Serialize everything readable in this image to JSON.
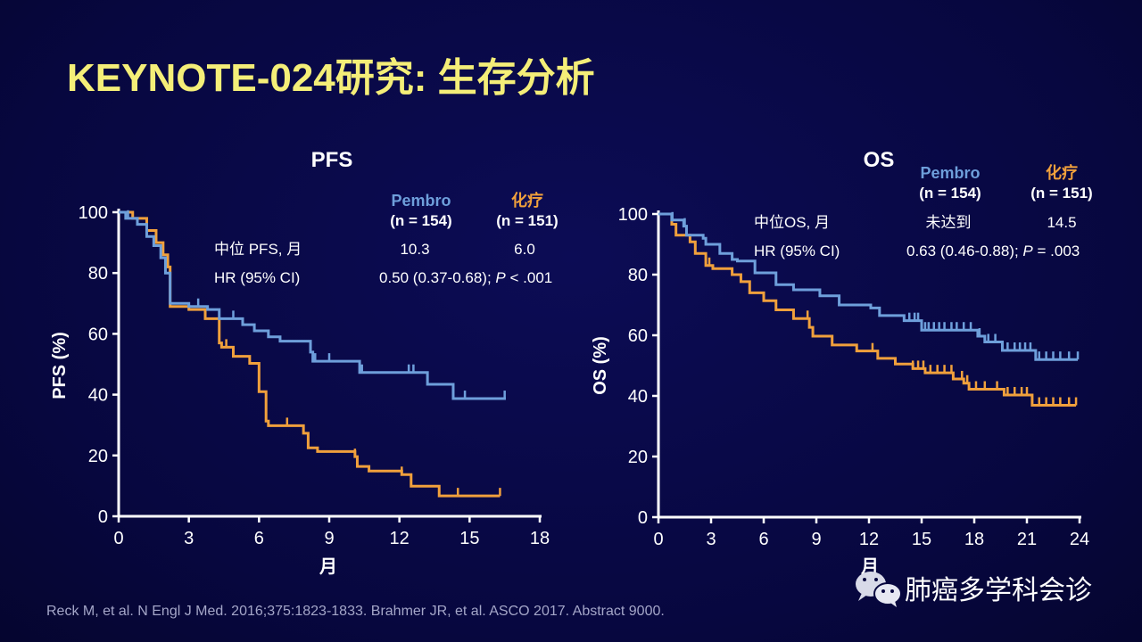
{
  "title": "KEYNOTE-024研究: 生存分析",
  "colors": {
    "pembro": "#6e9fdb",
    "chemo": "#f0a03c",
    "title": "#f4ee78",
    "background": "#07073f"
  },
  "chart_data": [
    {
      "type": "line",
      "subtype": "kaplan-meier",
      "title": "PFS",
      "xlabel": "月",
      "ylabel": "PFS (%)",
      "xlim": [
        0,
        18
      ],
      "ylim": [
        0,
        100
      ],
      "xticks": [
        "0",
        "3",
        "6",
        "9",
        "12",
        "15",
        "18"
      ],
      "yticks": [
        "0",
        "20",
        "40",
        "60",
        "80",
        "100"
      ],
      "legend": [
        {
          "name": "Pembro",
          "n": "(n = 154)"
        },
        {
          "name": "化疗",
          "n": "(n = 151)"
        }
      ],
      "stats": {
        "median_label": "中位 PFS, 月",
        "median_pembro": "10.3",
        "median_chemo": "6.0",
        "hr_label": "HR (95% CI)",
        "hr_value": "0.50 (0.37-0.68); ",
        "p_symbol": "P",
        "p_value": " < .001"
      },
      "series": [
        {
          "name": "Pembro",
          "steps": [
            [
              0,
              100
            ],
            [
              0.3,
              98
            ],
            [
              0.8,
              96
            ],
            [
              1.2,
              92
            ],
            [
              1.5,
              89
            ],
            [
              1.8,
              85
            ],
            [
              2.0,
              80
            ],
            [
              2.2,
              70
            ],
            [
              3.0,
              69
            ],
            [
              3.8,
              68
            ],
            [
              4.3,
              65
            ],
            [
              5.3,
              63
            ],
            [
              5.8,
              61
            ],
            [
              6.4,
              59
            ],
            [
              6.9,
              57.6
            ],
            [
              8.2,
              54
            ],
            [
              8.3,
              51
            ],
            [
              10.3,
              47.3
            ],
            [
              13.2,
              43.4
            ],
            [
              14.3,
              38.7
            ],
            [
              16.55,
              38.7
            ]
          ],
          "censored": [
            0.4,
            3.4,
            4.9,
            8.4,
            9.0,
            10.4,
            12.4,
            12.6,
            14.8,
            16.5
          ]
        },
        {
          "name": "化疗",
          "steps": [
            [
              0,
              100
            ],
            [
              0.6,
              98
            ],
            [
              1.2,
              94
            ],
            [
              1.6,
              90
            ],
            [
              1.9,
              86
            ],
            [
              2.1,
              82
            ],
            [
              2.2,
              69
            ],
            [
              3.0,
              68
            ],
            [
              3.7,
              65
            ],
            [
              4.3,
              57
            ],
            [
              4.4,
              55.6
            ],
            [
              4.9,
              52.6
            ],
            [
              5.6,
              50.3
            ],
            [
              6.0,
              41
            ],
            [
              6.3,
              31.3
            ],
            [
              6.4,
              29.8
            ],
            [
              7.9,
              27.3
            ],
            [
              8.1,
              22.5
            ],
            [
              8.5,
              21.3
            ],
            [
              10.1,
              19.6
            ],
            [
              10.2,
              16.4
            ],
            [
              10.7,
              14.9
            ],
            [
              12.1,
              13.7
            ],
            [
              12.5,
              9.9
            ],
            [
              13.7,
              6.7
            ],
            [
              16.3,
              6.7
            ]
          ],
          "censored": [
            4.6,
            7.2,
            7.9,
            10.1,
            12.1,
            13.7,
            14.5,
            16.3
          ]
        }
      ]
    },
    {
      "type": "line",
      "subtype": "kaplan-meier",
      "title": "OS",
      "xlabel": "月",
      "ylabel": "OS (%)",
      "xlim": [
        0,
        24
      ],
      "ylim": [
        0,
        100
      ],
      "xticks": [
        "0",
        "3",
        "6",
        "9",
        "12",
        "15",
        "18",
        "21",
        "24"
      ],
      "yticks": [
        "0",
        "20",
        "40",
        "60",
        "80",
        "100"
      ],
      "legend": [
        {
          "name": "Pembro",
          "n": "(n = 154)"
        },
        {
          "name": "化疗",
          "n": "(n = 151)"
        }
      ],
      "stats": {
        "median_label": "中位OS, 月",
        "median_pembro": "未达到",
        "median_chemo": "14.5",
        "hr_label": "HR (95% CI)",
        "hr_value": "0.63 (0.46-0.88); ",
        "p_symbol": "P",
        "p_value": " = .003"
      },
      "series": [
        {
          "name": "Pembro",
          "steps": [
            [
              0,
              100
            ],
            [
              0.76,
              98
            ],
            [
              1.44,
              96
            ],
            [
              1.6,
              93
            ],
            [
              2.55,
              92
            ],
            [
              2.7,
              90
            ],
            [
              3.5,
              87
            ],
            [
              4.2,
              85
            ],
            [
              4.5,
              84.5
            ],
            [
              5.5,
              80.6
            ],
            [
              6.7,
              76.7
            ],
            [
              7.7,
              75
            ],
            [
              9.2,
              73
            ],
            [
              10.3,
              70
            ],
            [
              12.1,
              69
            ],
            [
              12.6,
              66.5
            ],
            [
              14.0,
              64.8
            ],
            [
              15.0,
              61.7
            ],
            [
              18.2,
              59.7
            ],
            [
              18.6,
              57.8
            ],
            [
              19.6,
              55
            ],
            [
              21.5,
              52
            ],
            [
              23.9,
              52
            ]
          ],
          "censored": [
            0.8,
            1.5,
            14.3,
            14.6,
            14.8,
            15.2,
            15.4,
            15.7,
            16.0,
            16.3,
            16.7,
            17.0,
            17.4,
            17.8,
            18.3,
            18.8,
            19.2,
            19.9,
            20.3,
            20.6,
            20.9,
            21.2,
            21.7,
            22.1,
            22.5,
            22.9,
            23.4,
            23.9
          ]
        },
        {
          "name": "化疗",
          "steps": [
            [
              0,
              100
            ],
            [
              0.76,
              96.6
            ],
            [
              1.0,
              93
            ],
            [
              1.8,
              90.8
            ],
            [
              2.1,
              87
            ],
            [
              2.7,
              83
            ],
            [
              3.1,
              82
            ],
            [
              4.2,
              80
            ],
            [
              4.7,
              77.7
            ],
            [
              5.2,
              74
            ],
            [
              6.0,
              71.4
            ],
            [
              6.7,
              68.4
            ],
            [
              7.7,
              65.5
            ],
            [
              8.6,
              62.6
            ],
            [
              8.8,
              59.7
            ],
            [
              9.9,
              56.8
            ],
            [
              11.3,
              54.8
            ],
            [
              12.5,
              52.4
            ],
            [
              13.5,
              50.5
            ],
            [
              14.5,
              49
            ],
            [
              15.2,
              47.6
            ],
            [
              16.8,
              45.6
            ],
            [
              17.4,
              44.2
            ],
            [
              17.7,
              42.2
            ],
            [
              19.7,
              40.3
            ],
            [
              21.3,
              36.9
            ],
            [
              23.8,
              36.9
            ]
          ],
          "censored": [
            2.9,
            8.5,
            12.2,
            14.5,
            14.8,
            15.1,
            15.5,
            15.9,
            16.3,
            16.7,
            17.3,
            17.6,
            18.1,
            18.6,
            19.3,
            19.9,
            20.3,
            20.7,
            21.0,
            21.7,
            22.1,
            22.5,
            22.9,
            23.4,
            23.8
          ]
        }
      ]
    }
  ],
  "footer": "Reck M, et al. N Engl J Med. 2016;375:1823-1833. Brahmer JR, et al. ASCO 2017. Abstract 9000.",
  "watermark": "肺癌多学科会诊"
}
